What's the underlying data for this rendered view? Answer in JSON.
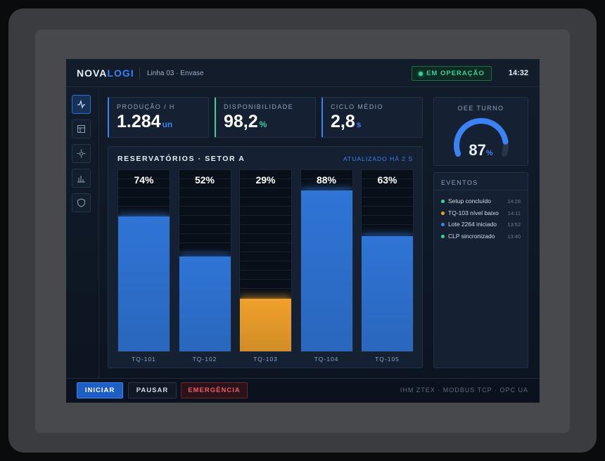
{
  "header": {
    "brand_a": "NOVA",
    "brand_b": "LOGI",
    "line": "Linha 03 · Envase",
    "status": "EM OPERAÇÃO",
    "time": "14:32"
  },
  "kpis": [
    {
      "label": "PRODUÇÃO / H",
      "value": "1.284",
      "unit": "un",
      "color": "#3b82f6"
    },
    {
      "label": "DISPONIBILIDADE",
      "value": "98,2",
      "unit": "%",
      "color": "#34d399"
    },
    {
      "label": "CICLO MÉDIO",
      "value": "2,8",
      "unit": "s",
      "color": "#3b82f6"
    }
  ],
  "oee": {
    "label": "OEE TURNO",
    "value": 87,
    "unit": "%",
    "range": [
      0,
      100
    ]
  },
  "chart_data": {
    "type": "bar",
    "title": "RESERVATÓRIOS · SETOR A",
    "subtitle": "ATUALIZADO HÁ 2 S",
    "categories": [
      "TQ-101",
      "TQ-102",
      "TQ-103",
      "TQ-104",
      "TQ-105"
    ],
    "values": [
      74,
      52,
      29,
      88,
      63
    ],
    "value_labels": [
      "74%",
      "52%",
      "29%",
      "88%",
      "63%"
    ],
    "colors": [
      "#2f74d6",
      "#2f74d6",
      "#f0a02a",
      "#2f74d6",
      "#2f74d6"
    ],
    "ylim": [
      0,
      100
    ]
  },
  "events": {
    "title": "EVENTOS",
    "items": [
      {
        "text": "Setup concluído",
        "time": "14:28",
        "color": "#34d399"
      },
      {
        "text": "TQ-103 nível baixo",
        "time": "14:11",
        "color": "#f0a02a"
      },
      {
        "text": "Lote 2264 iniciado",
        "time": "13:52",
        "color": "#3b82f6"
      },
      {
        "text": "CLP sincronizado",
        "time": "13:40",
        "color": "#34d399"
      }
    ]
  },
  "footer": {
    "buttons": [
      "INICIAR",
      "PAUSAR",
      "EMERGÊNCIA"
    ],
    "info": "IHM ZTEX · MODBUS TCP · OPC UA"
  }
}
